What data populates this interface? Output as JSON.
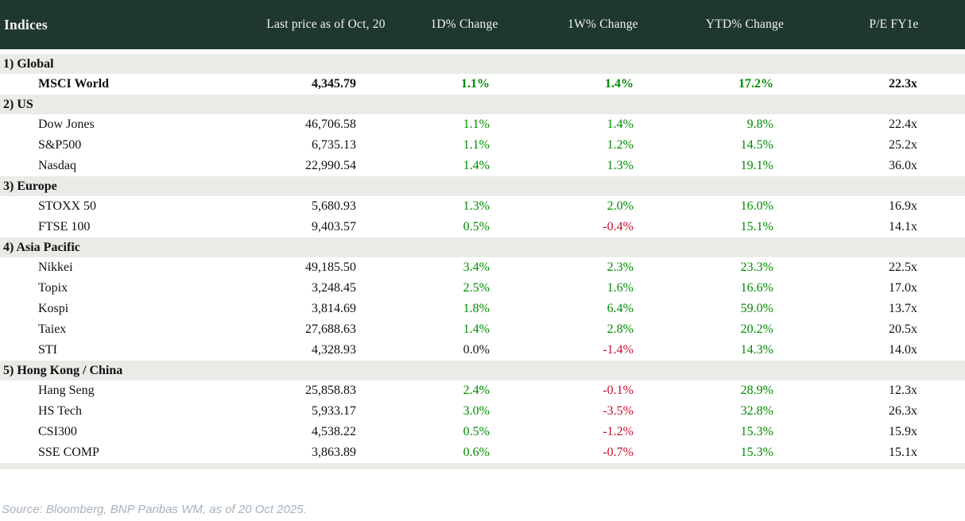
{
  "table": {
    "title": "Indices",
    "columns": [
      "Last price as of Oct, 20",
      "1D% Change",
      "1W% Change",
      "YTD% Change",
      "P/E FY1e"
    ],
    "sections": [
      {
        "label": "1) Global",
        "rows": [
          {
            "name": "MSCI World",
            "last_price": "4,345.79",
            "chg_1d": "1.1%",
            "chg_1w": "1.4%",
            "chg_ytd": "17.2%",
            "pe_fy1e": "22.3x",
            "emphasis": true
          }
        ]
      },
      {
        "label": "2) US",
        "rows": [
          {
            "name": "Dow Jones",
            "last_price": "46,706.58",
            "chg_1d": "1.1%",
            "chg_1w": "1.4%",
            "chg_ytd": "9.8%",
            "pe_fy1e": "22.4x"
          },
          {
            "name": "S&P500",
            "last_price": "6,735.13",
            "chg_1d": "1.1%",
            "chg_1w": "1.2%",
            "chg_ytd": "14.5%",
            "pe_fy1e": "25.2x"
          },
          {
            "name": "Nasdaq",
            "last_price": "22,990.54",
            "chg_1d": "1.4%",
            "chg_1w": "1.3%",
            "chg_ytd": "19.1%",
            "pe_fy1e": "36.0x"
          }
        ]
      },
      {
        "label": "3) Europe",
        "rows": [
          {
            "name": "STOXX 50",
            "last_price": "5,680.93",
            "chg_1d": "1.3%",
            "chg_1w": "2.0%",
            "chg_ytd": "16.0%",
            "pe_fy1e": "16.9x"
          },
          {
            "name": "FTSE 100",
            "last_price": "9,403.57",
            "chg_1d": "0.5%",
            "chg_1w": "-0.4%",
            "chg_ytd": "15.1%",
            "pe_fy1e": "14.1x"
          }
        ]
      },
      {
        "label": "4) Asia Pacific",
        "rows": [
          {
            "name": "Nikkei",
            "last_price": "49,185.50",
            "chg_1d": "3.4%",
            "chg_1w": "2.3%",
            "chg_ytd": "23.3%",
            "pe_fy1e": "22.5x"
          },
          {
            "name": "Topix",
            "last_price": "3,248.45",
            "chg_1d": "2.5%",
            "chg_1w": "1.6%",
            "chg_ytd": "16.6%",
            "pe_fy1e": "17.0x"
          },
          {
            "name": "Kospi",
            "last_price": "3,814.69",
            "chg_1d": "1.8%",
            "chg_1w": "6.4%",
            "chg_ytd": "59.0%",
            "pe_fy1e": "13.7x"
          },
          {
            "name": "Taiex",
            "last_price": "27,688.63",
            "chg_1d": "1.4%",
            "chg_1w": "2.8%",
            "chg_ytd": "20.2%",
            "pe_fy1e": "20.5x"
          },
          {
            "name": "STI",
            "last_price": "4,328.93",
            "chg_1d": "0.0%",
            "chg_1w": "-1.4%",
            "chg_ytd": "14.3%",
            "pe_fy1e": "14.0x"
          }
        ]
      },
      {
        "label": "5) Hong Kong / China",
        "rows": [
          {
            "name": "Hang Seng",
            "last_price": "25,858.83",
            "chg_1d": "2.4%",
            "chg_1w": "-0.1%",
            "chg_ytd": "28.9%",
            "pe_fy1e": "12.3x"
          },
          {
            "name": "HS Tech",
            "last_price": "5,933.17",
            "chg_1d": "3.0%",
            "chg_1w": "-3.5%",
            "chg_ytd": "32.8%",
            "pe_fy1e": "26.3x"
          },
          {
            "name": "CSI300",
            "last_price": "4,538.22",
            "chg_1d": "0.5%",
            "chg_1w": "-1.2%",
            "chg_ytd": "15.3%",
            "pe_fy1e": "15.9x"
          },
          {
            "name": "SSE COMP",
            "last_price": "3,863.89",
            "chg_1d": "0.6%",
            "chg_1w": "-0.7%",
            "chg_ytd": "15.3%",
            "pe_fy1e": "15.1x"
          }
        ]
      }
    ]
  },
  "footer": {
    "source": "Source: Bloomberg, BNP Paribas WM, as of 20 Oct 2025."
  },
  "colors": {
    "header_bg": "#1e3731",
    "header_text": "#f6f3ea",
    "section_band_bg": "#e9ebe7",
    "positive": "#008a00",
    "negative": "#c8102e",
    "neutral_text": "#141414",
    "source_text": "#a9b3bc"
  },
  "chart_data": {
    "type": "table",
    "title": "Indices",
    "columns": [
      "Indices",
      "Last price as of Oct, 20",
      "1D% Change",
      "1W% Change",
      "YTD% Change",
      "P/E FY1e"
    ],
    "rows": [
      [
        "1) Global",
        "",
        "",
        "",
        "",
        ""
      ],
      [
        "MSCI World",
        "4,345.79",
        "1.1%",
        "1.4%",
        "17.2%",
        "22.3x"
      ],
      [
        "2) US",
        "",
        "",
        "",
        "",
        ""
      ],
      [
        "Dow Jones",
        "46,706.58",
        "1.1%",
        "1.4%",
        "9.8%",
        "22.4x"
      ],
      [
        "S&P500",
        "6,735.13",
        "1.1%",
        "1.2%",
        "14.5%",
        "25.2x"
      ],
      [
        "Nasdaq",
        "22,990.54",
        "1.4%",
        "1.3%",
        "19.1%",
        "36.0x"
      ],
      [
        "3) Europe",
        "",
        "",
        "",
        "",
        ""
      ],
      [
        "STOXX 50",
        "5,680.93",
        "1.3%",
        "2.0%",
        "16.0%",
        "16.9x"
      ],
      [
        "FTSE 100",
        "9,403.57",
        "0.5%",
        "-0.4%",
        "15.1%",
        "14.1x"
      ],
      [
        "4) Asia Pacific",
        "",
        "",
        "",
        "",
        ""
      ],
      [
        "Nikkei",
        "49,185.50",
        "3.4%",
        "2.3%",
        "23.3%",
        "22.5x"
      ],
      [
        "Topix",
        "3,248.45",
        "2.5%",
        "1.6%",
        "16.6%",
        "17.0x"
      ],
      [
        "Kospi",
        "3,814.69",
        "1.8%",
        "6.4%",
        "59.0%",
        "13.7x"
      ],
      [
        "Taiex",
        "27,688.63",
        "1.4%",
        "2.8%",
        "20.2%",
        "20.5x"
      ],
      [
        "STI",
        "4,328.93",
        "0.0%",
        "-1.4%",
        "14.3%",
        "14.0x"
      ],
      [
        "5) Hong Kong / China",
        "",
        "",
        "",
        "",
        ""
      ],
      [
        "Hang Seng",
        "25,858.83",
        "2.4%",
        "-0.1%",
        "28.9%",
        "12.3x"
      ],
      [
        "HS Tech",
        "5,933.17",
        "3.0%",
        "-3.5%",
        "32.8%",
        "26.3x"
      ],
      [
        "CSI300",
        "4,538.22",
        "0.5%",
        "-1.2%",
        "15.3%",
        "15.9x"
      ],
      [
        "SSE COMP",
        "3,863.89",
        "0.6%",
        "-0.7%",
        "15.3%",
        "15.1x"
      ]
    ],
    "notes": "Green = positive change, red = negative change, black = zero/neutral; MSCI World row is bold."
  }
}
